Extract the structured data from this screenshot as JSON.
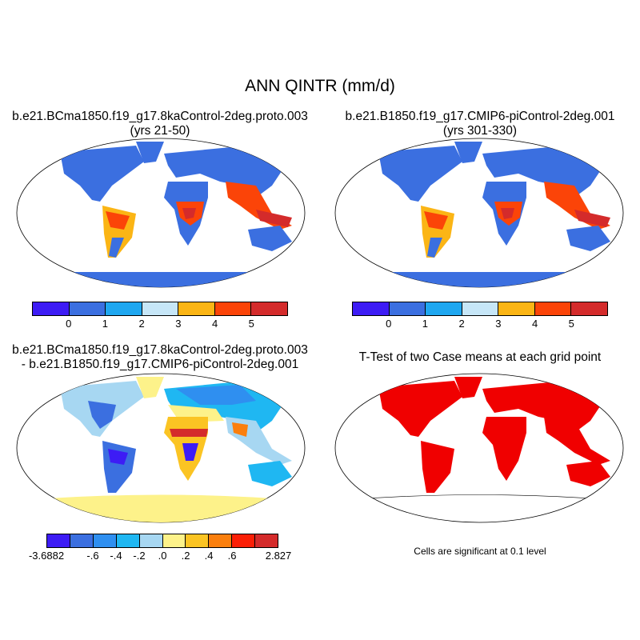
{
  "main_title": "ANN QINTR (mm/d)",
  "panels": {
    "case1": {
      "title_line1": "b.e21.BCma1850.f19_g17.8kaControl-2deg.proto.003",
      "title_line2": "(yrs 21-50)"
    },
    "case2": {
      "title_line1": "b.e21.B1850.f19_g17.CMIP6-piControl-2deg.001",
      "title_line2": "(yrs 301-330)"
    },
    "diff": {
      "title_line1": "b.e21.BCma1850.f19_g17.8kaControl-2deg.proto.003",
      "title_line2": "- b.e21.B1850.f19_g17.CMIP6-piControl-2deg.001"
    },
    "ttest": {
      "title_line1": "T-Test of two Case means at each grid point",
      "note": "Cells are significant at 0.1 level"
    }
  },
  "colorbar_main": {
    "colors": [
      "#3d1cf5",
      "#3b6fe0",
      "#1fa7f0",
      "#c6e6f7",
      "#fbb515",
      "#fb4408",
      "#d42b2b"
    ],
    "ticks": [
      "0",
      "1",
      "2",
      "3",
      "4",
      "5"
    ]
  },
  "colorbar_diff": {
    "colors": [
      "#3d1cf5",
      "#3b6fe0",
      "#2f8ff0",
      "#1fb7f2",
      "#a7d7f2",
      "#fdf28a",
      "#fbc423",
      "#fb7f0d",
      "#fb1f06",
      "#d42b2b"
    ],
    "ticks": [
      "-3.6882",
      "-.6",
      "-.4",
      "-.2",
      ".0",
      ".2",
      ".4",
      ".6",
      "2.827"
    ]
  },
  "map_colors": {
    "ocean": "#ffffff",
    "antarctica_case": "#3b6fe0",
    "antarctica_diff": "#fdf28a",
    "significant": "#f00000"
  }
}
